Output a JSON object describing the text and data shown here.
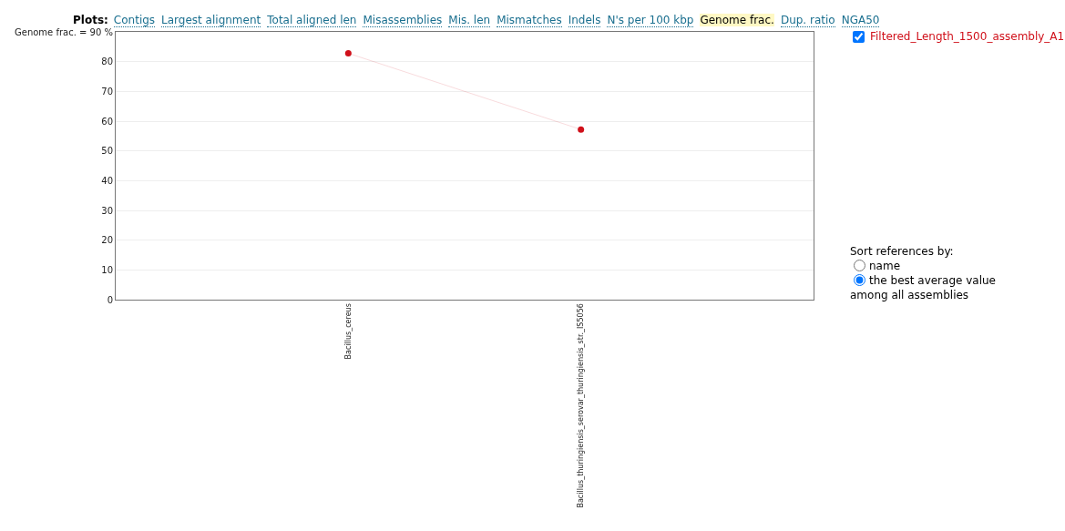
{
  "chart_data": {
    "type": "line",
    "categories": [
      "Bacillus_cereus",
      "Bacillus_thuringiensis_serovar_thuringiensis_str._IS5056"
    ],
    "series": [
      {
        "name": "Filtered_Length_1500_assembly_A1",
        "color": "#d0101a",
        "values": [
          82.8,
          57.2
        ]
      }
    ],
    "ylim": [
      0,
      90
    ],
    "yticks": [
      0,
      10,
      20,
      30,
      40,
      50,
      60,
      70,
      80,
      {
        "value": 90,
        "label": "Genome frac. = 90 %"
      }
    ],
    "grid": "y",
    "marker": "circle",
    "line_style": "solid",
    "legend": "top right",
    "annotations": [
      "Plots:",
      "Contigs",
      "Largest alignment",
      "Total aligned len",
      "Misassemblies",
      "Mis. len",
      "Mismatches",
      "Indels",
      "N's per 100 kbp",
      "Genome frac.",
      "Dup. ratio",
      "NGA50",
      "Sort references by:",
      "name",
      "the best average value",
      "among all assemblies"
    ]
  }
}
